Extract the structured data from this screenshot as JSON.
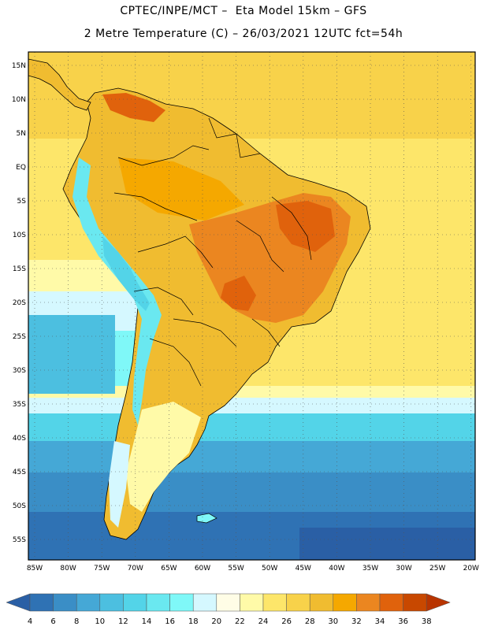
{
  "header": {
    "line1": "CPTEC/INPE/MCT –  Eta Model 15km – GFS",
    "line2": "2 Metre Temperature (C) – 26/03/2021 12UTC fct=54h"
  },
  "map": {
    "region": "South America",
    "variable": "2 Metre Temperature",
    "units": "C",
    "lat_labels": [
      "15N",
      "10N",
      "5N",
      "EQ",
      "5S",
      "10S",
      "15S",
      "20S",
      "25S",
      "30S",
      "35S",
      "40S",
      "45S",
      "50S",
      "55S"
    ],
    "lon_labels": [
      "85W",
      "80W",
      "75W",
      "70W",
      "65W",
      "60W",
      "55W",
      "50W",
      "45W",
      "40W",
      "35W",
      "30W",
      "25W",
      "20W"
    ],
    "grid": "dotted"
  },
  "colorbar": {
    "levels": [
      "4",
      "6",
      "8",
      "10",
      "12",
      "14",
      "16",
      "18",
      "20",
      "22",
      "24",
      "26",
      "28",
      "30",
      "32",
      "34",
      "36",
      "38"
    ],
    "colors": [
      "#2a5fa5",
      "#2f72b4",
      "#3a8ec6",
      "#45a8d6",
      "#4cbfe0",
      "#53d4e8",
      "#6ae8f0",
      "#7ff8f8",
      "#d5f8ff",
      "#fffde6",
      "#fffaa8",
      "#fde66a",
      "#f8d24a",
      "#f0bc30",
      "#f5a800",
      "#eb8620",
      "#e0620c",
      "#c84800",
      "#b83400"
    ]
  },
  "palette": {
    "ocean_deep": "#2a5fa5",
    "ocean_mid": "#3a8ec6",
    "ocean_cool": "#4cbfe0",
    "ocean_light": "#d5f8ff",
    "warm_ocean": "#fde66a",
    "land_warm": "#f0bc30",
    "land_hot": "#e0620c",
    "andes_cold": "#6ae8f0"
  }
}
